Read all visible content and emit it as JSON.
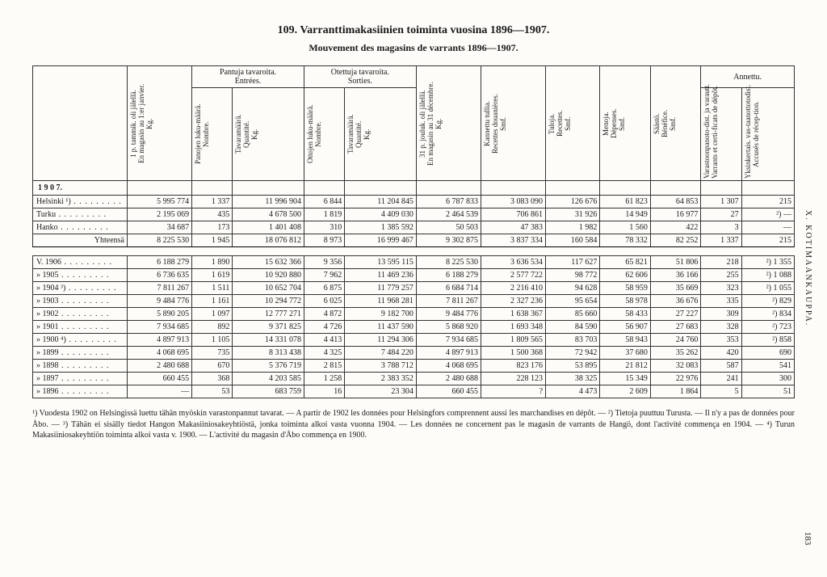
{
  "title_main": "109.  Varranttimakasiinien toiminta vuosina 1896—1907.",
  "title_sub": "Mouvement des magasins de varrants 1896—1907.",
  "side_text": "X.  KOTIMAANKAUPPA.",
  "page_number": "183",
  "headers": {
    "group_pantuja": "Pantuja tavaroita.",
    "group_pantuja_fr": "Entrées.",
    "group_otettuja": "Otettuja tavaroita.",
    "group_otettuja_fr": "Sorties.",
    "group_annettu": "Annettu.",
    "col1a": "1 p. tammik. oli jälellä.",
    "col1b": "En magasin au 1:er janvier.",
    "col1c": "Kg.",
    "col2a": "Panojen luku-määrä.",
    "col2b": "Nombre.",
    "col3a": "Tavaramäärä.",
    "col3b": "Quantité.",
    "col3c": "Kg.",
    "col4a": "Ottojen luku-määrä.",
    "col4b": "Nombre.",
    "col5a": "Tavaramäärä.",
    "col5b": "Quantité.",
    "col5c": "Kg.",
    "col6a": "31 p. jouluk. oli jälellä.",
    "col6b": "En magasin au 31 décembre.",
    "col6c": "Kg.",
    "col7a": "Kannettu tullia.",
    "col7b": "Recettes douanières.",
    "col7c": "Smf.",
    "col8a": "Tuloja.",
    "col8b": "Recettes.",
    "col8c": "Smf.",
    "col9a": "Menoja.",
    "col9b": "Dépenses.",
    "col9c": "Smf.",
    "col10a": "Säästö.",
    "col10b": "Bénéfice.",
    "col10c": "Smf.",
    "col11a": "Varastoonpanoto-dist. ja varautt.",
    "col11b": "Varrants et certi-ficats de dépôt.",
    "col12a": "Yksinkertais. vas-taanottotodist.",
    "col12b": "Accusés de récep-tion."
  },
  "section_1907": "1 9 0 7.",
  "rows1907": [
    {
      "label": "Helsinki ¹)",
      "c": [
        "5 995 774",
        "1 337",
        "11 996 904",
        "6 844",
        "11 204 845",
        "6 787 833",
        "3 083 090",
        "126 676",
        "61 823",
        "64 853",
        "1 307",
        "215"
      ]
    },
    {
      "label": "Turku",
      "c": [
        "2 195 069",
        "435",
        "4 678 500",
        "1 819",
        "4 409 030",
        "2 464 539",
        "706 861",
        "31 926",
        "14 949",
        "16 977",
        "27",
        "²) —"
      ]
    },
    {
      "label": "Hanko",
      "c": [
        "34 687",
        "173",
        "1 401 408",
        "310",
        "1 385 592",
        "50 503",
        "47 383",
        "1 982",
        "1 560",
        "422",
        "3",
        "—"
      ]
    }
  ],
  "yht_label": "Yhteensä",
  "yht": [
    "8 225 530",
    "1 945",
    "18 076 812",
    "8 973",
    "16 999 467",
    "9 302 875",
    "3 837 334",
    "160 584",
    "78 332",
    "82 252",
    "1 337",
    "215"
  ],
  "rowsYears": [
    {
      "label": "V. 1906",
      "c": [
        "6 188 279",
        "1 890",
        "15 632 366",
        "9 356",
        "13 595 115",
        "8 225 530",
        "3 636 534",
        "117 627",
        "65 821",
        "51 806",
        "218",
        "²) 1 355"
      ]
    },
    {
      "label": "»  1905",
      "c": [
        "6 736 635",
        "1 619",
        "10 920 880",
        "7 962",
        "11 469 236",
        "6 188 279",
        "2 577 722",
        "98 772",
        "62 606",
        "36 166",
        "255",
        "²) 1 088"
      ]
    },
    {
      "label": "»  1904 ³)",
      "c": [
        "7 811 267",
        "1 511",
        "10 652 704",
        "6 875",
        "11 779 257",
        "6 684 714",
        "2 216 410",
        "94 628",
        "58 959",
        "35 669",
        "323",
        "²) 1 055"
      ]
    },
    {
      "label": "»  1903",
      "c": [
        "9 484 776",
        "1 161",
        "10 294 772",
        "6 025",
        "11 968 281",
        "7 811 267",
        "2 327 236",
        "95 654",
        "58 978",
        "36 676",
        "335",
        "²) 829"
      ]
    },
    {
      "label": "»  1902",
      "c": [
        "5 890 205",
        "1 097",
        "12 777 271",
        "4 872",
        "9 182 700",
        "9 484 776",
        "1 638 367",
        "85 660",
        "58 433",
        "27 227",
        "309",
        "²) 834"
      ]
    },
    {
      "label": "»  1901",
      "c": [
        "7 934 685",
        "892",
        "9 371 825",
        "4 726",
        "11 437 590",
        "5 868 920",
        "1 693 348",
        "84 590",
        "56 907",
        "27 683",
        "328",
        "²) 723"
      ]
    },
    {
      "label": "»  1900 ⁴)",
      "c": [
        "4 897 913",
        "1 105",
        "14 331 078",
        "4 413",
        "11 294 306",
        "7 934 685",
        "1 809 565",
        "83 703",
        "58 943",
        "24 760",
        "353",
        "²) 858"
      ]
    },
    {
      "label": "»  1899",
      "c": [
        "4 068 695",
        "735",
        "8 313 438",
        "4 325",
        "7 484 220",
        "4 897 913",
        "1 500 368",
        "72 942",
        "37 680",
        "35 262",
        "420",
        "690"
      ]
    },
    {
      "label": "»  1898",
      "c": [
        "2 480 688",
        "670",
        "5 376 719",
        "2 815",
        "3 788 712",
        "4 068 695",
        "823 176",
        "53 895",
        "21 812",
        "32 083",
        "587",
        "541"
      ]
    },
    {
      "label": "»  1897",
      "c": [
        "660 455",
        "368",
        "4 203 585",
        "1 258",
        "2 383 352",
        "2 480 688",
        "228 123",
        "38 325",
        "15 349",
        "22 976",
        "241",
        "300"
      ]
    },
    {
      "label": "»  1896",
      "c": [
        "—",
        "53",
        "683 759",
        "16",
        "23 304",
        "660 455",
        "?",
        "4 473",
        "2 609",
        "1 864",
        "5",
        "51"
      ]
    }
  ],
  "footnotes": "¹) Vuodesta 1902 on Helsingissä luettu tähän myöskin varastonpannut tavarat. — A partir de 1902 les données pour Helsingfors comprennent aussi les marchandises en dépôt. — ²) Tietoja puuttuu Turusta. — Il n'y a pas de données pour Åbo. — ³) Tähän ei sisälly tiedot Hangon Makasiiniosakeyhtiöstä, jonka toiminta alkoi vasta vuonna 1904. — Les données ne concernent pas le magasin de varrants de Hangö, dont l'activité commença en 1904. — ⁴) Turun Makasiiniosakeyhtiön toiminta alkoi vasta v. 1900. — L'activité du magasin d'Åbo commença en 1900.",
  "style": {
    "background": "#fdfcf8",
    "border_color": "#333333",
    "font_size_body": 11,
    "font_size_table": 10
  }
}
